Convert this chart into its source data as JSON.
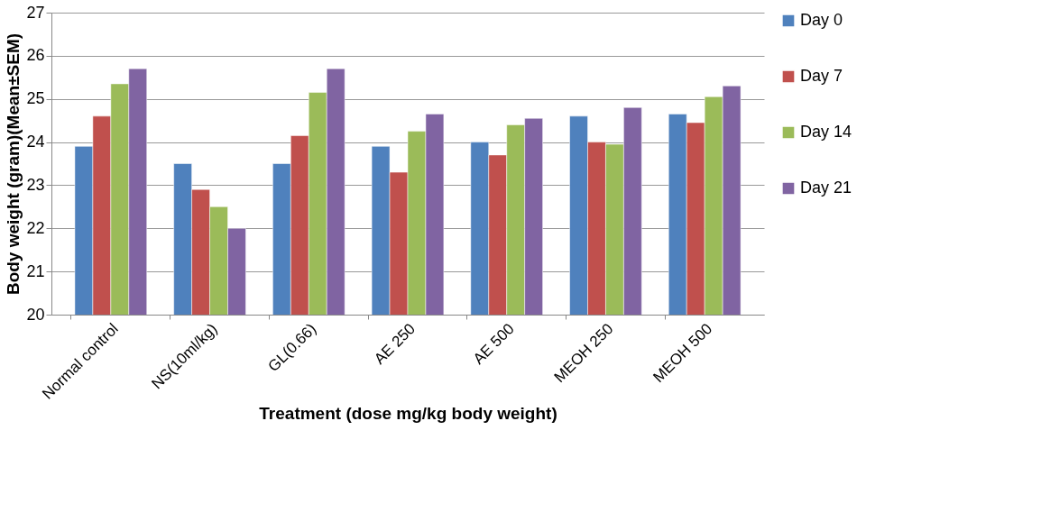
{
  "chart_data": {
    "type": "bar",
    "xlabel": "Treatment (dose mg/kg body weight)",
    "ylabel": "Body weight (gram)(Mean±SEM)",
    "categories": [
      "Normal control",
      "NS(10ml/kg)",
      "GL(0.66)",
      "AE 250",
      "AE 500",
      "MEOH 250",
      "MEOH 500"
    ],
    "series": [
      {
        "name": "Day 0",
        "color": "#4f81bd",
        "values": [
          23.9,
          23.5,
          23.5,
          23.9,
          24.0,
          24.6,
          24.65
        ]
      },
      {
        "name": "Day 7",
        "color": "#c0504d",
        "values": [
          24.6,
          22.9,
          24.15,
          23.3,
          23.7,
          24.0,
          24.45
        ]
      },
      {
        "name": "Day 14",
        "color": "#9bbb59",
        "values": [
          25.35,
          22.5,
          25.15,
          24.25,
          24.4,
          23.95,
          25.05
        ]
      },
      {
        "name": "Day 21",
        "color": "#8064a2",
        "values": [
          25.7,
          22.0,
          25.7,
          24.65,
          24.55,
          24.8,
          25.3
        ]
      }
    ],
    "ylim": [
      20,
      27
    ],
    "yticks": [
      20,
      21,
      22,
      23,
      24,
      25,
      26,
      27
    ],
    "grid": "y",
    "legend": "right"
  }
}
